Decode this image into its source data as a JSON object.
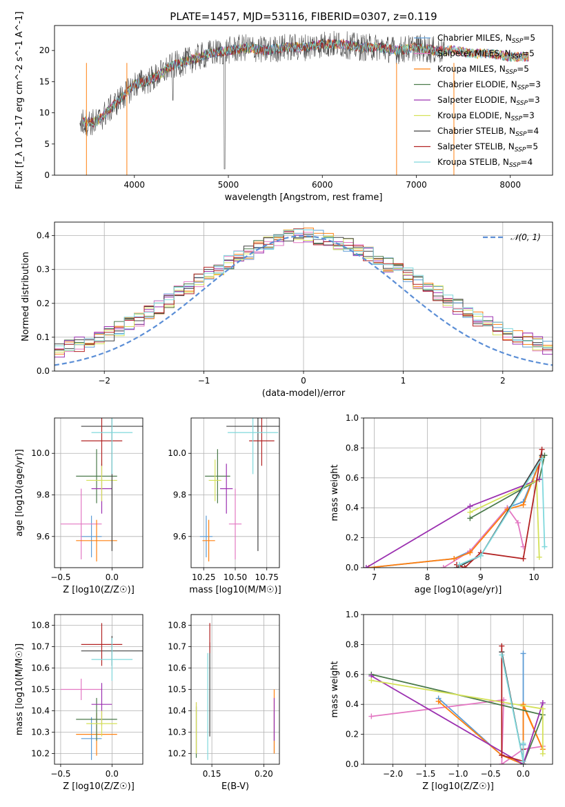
{
  "figure": {
    "title": "PLATE=1457, MJD=53116, FIBERID=0307, z=0.119"
  },
  "models": [
    {
      "name": "Chabrier MILES",
      "nssp": 5,
      "color": "#5b9bd5"
    },
    {
      "name": "Salpeter MILES",
      "nssp": 5,
      "color": "#e377c2"
    },
    {
      "name": "Kroupa MILES",
      "nssp": 5,
      "color": "#ff7f0e"
    },
    {
      "name": "Chabrier ELODIE",
      "nssp": 3,
      "color": "#4a7a4a"
    },
    {
      "name": "Salpeter ELODIE",
      "nssp": 3,
      "color": "#9b30b0"
    },
    {
      "name": "Kroupa ELODIE",
      "nssp": 3,
      "color": "#d4e157"
    },
    {
      "name": "Chabrier STELIB",
      "nssp": 4,
      "color": "#404040"
    },
    {
      "name": "Salpeter STELIB",
      "nssp": 5,
      "color": "#b22222"
    },
    {
      "name": "Kroupa STELIB",
      "nssp": 4,
      "color": "#7fd8dc"
    }
  ],
  "chart_data": [
    {
      "id": "spectrum",
      "type": "line",
      "xlabel": "wavelength [Angstrom, rest frame]",
      "ylabel": "Flux [f_λ 10^-17 erg cm^-2 s^-1 A^-1]",
      "xlim": [
        3150,
        8450
      ],
      "ylim": [
        0,
        24
      ],
      "xticks": [
        4000,
        5000,
        6000,
        7000,
        8000
      ],
      "yticks": [
        0,
        5,
        10,
        15,
        20
      ],
      "grid": false,
      "legend": "right",
      "data": {
        "x": [
          3450,
          3600,
          3800,
          4000,
          4200,
          4400,
          4600,
          4800,
          5000,
          5200,
          5400,
          5600,
          5800,
          6000,
          6200,
          6400,
          6600,
          6800,
          7000,
          7200,
          7400,
          7600,
          7800,
          8000,
          8200
        ],
        "y": [
          8.5,
          8.5,
          11.5,
          14.5,
          15.5,
          17.5,
          18.5,
          19.5,
          20,
          20.5,
          20,
          20.5,
          20.5,
          21,
          21,
          20.5,
          20.5,
          20,
          20.5,
          20,
          20,
          19.5,
          19.5,
          19,
          19
        ]
      }
    },
    {
      "id": "residuals",
      "type": "histogram",
      "xlabel": "(data-model)/error",
      "ylabel": "Normed distribution",
      "xlim": [
        -2.5,
        2.5
      ],
      "ylim": [
        0,
        0.44
      ],
      "xticks": [
        -2,
        -1,
        0,
        1,
        2
      ],
      "yticks": [
        0.0,
        0.1,
        0.2,
        0.3,
        0.4
      ],
      "grid": true,
      "legend": "top-right",
      "reference_label": "𝒩(0, 1)",
      "bin_width": 0.1,
      "mean_distribution": [
        0.035,
        0.04,
        0.045,
        0.05,
        0.055,
        0.06,
        0.07,
        0.08,
        0.09,
        0.1,
        0.11,
        0.125,
        0.14,
        0.155,
        0.17,
        0.19,
        0.21,
        0.23,
        0.25,
        0.27,
        0.29,
        0.305,
        0.32,
        0.335,
        0.35,
        0.365,
        0.375,
        0.385,
        0.395,
        0.4,
        0.4,
        0.395,
        0.39,
        0.38,
        0.37,
        0.36,
        0.345,
        0.33,
        0.315,
        0.3,
        0.285,
        0.265,
        0.25,
        0.23,
        0.21,
        0.19,
        0.17,
        0.155,
        0.14,
        0.125,
        0.11,
        0.1,
        0.09,
        0.08,
        0.07,
        0.06,
        0.055,
        0.05,
        0.045,
        0.04,
        0.035,
        0.035
      ]
    },
    {
      "id": "age_vs_Z",
      "type": "errorbar",
      "xlabel": "Z [log10(Z/Z☉)]",
      "ylabel": "age [log10(age/yr)]",
      "xlim": [
        -0.56,
        0.3
      ],
      "ylim": [
        9.45,
        10.17
      ],
      "xticks": [
        -0.5,
        0.0
      ],
      "yticks": [
        9.6,
        9.8,
        10.0
      ],
      "grid": true,
      "points": [
        {
          "x": -0.2,
          "xerr": 0.1,
          "y": 9.6,
          "yerr": 0.1
        },
        {
          "x": -0.3,
          "xerr": 0.2,
          "y": 9.66,
          "yerr": 0.17
        },
        {
          "x": -0.15,
          "xerr": 0.2,
          "y": 9.58,
          "yerr": 0.1
        },
        {
          "x": -0.15,
          "xerr": 0.2,
          "y": 9.89,
          "yerr": 0.13
        },
        {
          "x": -0.1,
          "xerr": 0.1,
          "y": 9.83,
          "yerr": 0.12
        },
        {
          "x": -0.1,
          "xerr": 0.15,
          "y": 9.87,
          "yerr": 0.1
        },
        {
          "x": 0.0,
          "xerr": 0.3,
          "y": 10.13,
          "yerr": 0.6
        },
        {
          "x": -0.1,
          "xerr": 0.2,
          "y": 10.06,
          "yerr": 0.12
        },
        {
          "x": 0.0,
          "xerr": 0.2,
          "y": 10.1,
          "yerr": 0.2
        }
      ]
    },
    {
      "id": "age_vs_mass",
      "type": "errorbar",
      "xlabel": "mass [log10(M/M☉)]",
      "ylabel": "",
      "xlim": [
        10.15,
        10.85
      ],
      "ylim": [
        9.45,
        10.17
      ],
      "xticks": [
        10.25,
        10.5,
        10.75
      ],
      "yticks": [
        9.6,
        9.8,
        10.0
      ],
      "grid": true,
      "points": [
        {
          "x": 10.27,
          "xerr": 0.05,
          "y": 9.6,
          "yerr": 0.1
        },
        {
          "x": 10.5,
          "xerr": 0.05,
          "y": 9.66,
          "yerr": 0.17
        },
        {
          "x": 10.29,
          "xerr": 0.05,
          "y": 9.58,
          "yerr": 0.1
        },
        {
          "x": 10.36,
          "xerr": 0.1,
          "y": 9.89,
          "yerr": 0.13
        },
        {
          "x": 10.43,
          "xerr": 0.05,
          "y": 9.83,
          "yerr": 0.12
        },
        {
          "x": 10.34,
          "xerr": 0.05,
          "y": 9.87,
          "yerr": 0.1
        },
        {
          "x": 10.68,
          "xerr": 0.25,
          "y": 10.13,
          "yerr": 0.6
        },
        {
          "x": 10.71,
          "xerr": 0.1,
          "y": 10.06,
          "yerr": 0.12
        },
        {
          "x": 10.64,
          "xerr": 0.2,
          "y": 10.1,
          "yerr": 0.2
        }
      ]
    },
    {
      "id": "mass_weight_vs_age",
      "type": "line",
      "xlabel": "age [log10(age/yr)]",
      "ylabel": "mass weight",
      "xlim": [
        6.8,
        10.35
      ],
      "ylim": [
        0,
        1
      ],
      "xticks": [
        7,
        8,
        9,
        10
      ],
      "yticks": [
        0.0,
        0.2,
        0.4,
        0.6,
        0.8,
        1.0
      ],
      "grid": true,
      "series": [
        {
          "x": [
            6.9,
            8.5,
            8.8,
            9.5,
            9.8,
            10.15
          ],
          "y": [
            0.0,
            0.06,
            0.11,
            0.4,
            0.44,
            0.74
          ]
        },
        {
          "x": [
            8.3,
            8.8,
            9.5,
            9.7,
            9.8
          ],
          "y": [
            0.0,
            0.11,
            0.4,
            0.3,
            0.14
          ]
        },
        {
          "x": [
            6.9,
            8.5,
            8.8,
            9.5,
            9.8,
            10.15
          ],
          "y": [
            0.0,
            0.06,
            0.1,
            0.39,
            0.42,
            0.74
          ]
        },
        {
          "x": [
            8.8,
            10.1,
            10.2
          ],
          "y": [
            0.33,
            0.59,
            0.75
          ]
        },
        {
          "x": [
            6.85,
            8.8,
            10.1
          ],
          "y": [
            0.0,
            0.41,
            0.59
          ]
        },
        {
          "x": [
            8.8,
            10.05,
            10.1
          ],
          "y": [
            0.37,
            0.58,
            0.07
          ]
        },
        {
          "x": [
            8.55,
            9.0,
            10.15
          ],
          "y": [
            0.0,
            0.08,
            0.75
          ]
        },
        {
          "x": [
            8.55,
            8.7,
            9.0,
            9.8,
            10.15
          ],
          "y": [
            0.02,
            0.0,
            0.1,
            0.06,
            0.79
          ]
        },
        {
          "x": [
            8.6,
            9.0,
            10.15,
            10.2
          ],
          "y": [
            0.02,
            0.08,
            0.73,
            0.14
          ]
        }
      ]
    },
    {
      "id": "mass_vs_Z",
      "type": "errorbar",
      "xlabel": "Z [log10(Z/Z☉)]",
      "ylabel": "mass [log10(M/M☉)]",
      "xlim": [
        -0.56,
        0.3
      ],
      "ylim": [
        10.15,
        10.85
      ],
      "xticks": [
        -0.5,
        0.0
      ],
      "yticks": [
        10.2,
        10.3,
        10.4,
        10.5,
        10.6,
        10.7,
        10.8
      ],
      "grid": true,
      "points": [
        {
          "x": -0.2,
          "xerr": 0.1,
          "y": 10.27,
          "yerr": 0.1
        },
        {
          "x": -0.3,
          "xerr": 0.2,
          "y": 10.5,
          "yerr": 0.05
        },
        {
          "x": -0.15,
          "xerr": 0.2,
          "y": 10.29,
          "yerr": 0.1
        },
        {
          "x": -0.15,
          "xerr": 0.2,
          "y": 10.36,
          "yerr": 0.1
        },
        {
          "x": -0.1,
          "xerr": 0.1,
          "y": 10.43,
          "yerr": 0.1
        },
        {
          "x": -0.1,
          "xerr": 0.15,
          "y": 10.34,
          "yerr": 0.06
        },
        {
          "x": 0.0,
          "xerr": 0.3,
          "y": 10.68,
          "yerr": 0.07
        },
        {
          "x": -0.1,
          "xerr": 0.2,
          "y": 10.71,
          "yerr": 0.1
        },
        {
          "x": 0.0,
          "xerr": 0.2,
          "y": 10.64,
          "yerr": 0.1
        }
      ]
    },
    {
      "id": "mass_vs_ebv",
      "type": "errorbar",
      "xlabel": "E(B-V)",
      "ylabel": "",
      "xlim": [
        0.13,
        0.215
      ],
      "ylim": [
        10.15,
        10.85
      ],
      "xticks": [
        0.15,
        0.2
      ],
      "yticks": [
        10.2,
        10.3,
        10.4,
        10.5,
        10.6,
        10.7,
        10.8
      ],
      "grid": true,
      "points": [
        {
          "x": 0.21,
          "xerr": 0,
          "y": 10.3,
          "yerr": 0.1
        },
        {
          "x": 0.135,
          "xerr": 0,
          "y": 10.32,
          "yerr": 0.12
        },
        {
          "x": 0.21,
          "xerr": 0,
          "y": 10.35,
          "yerr": 0.15
        },
        {
          "x": 0.135,
          "xerr": 0,
          "y": 10.3,
          "yerr": 0.12
        },
        {
          "x": 0.21,
          "xerr": 0,
          "y": 10.36,
          "yerr": 0.1
        },
        {
          "x": 0.135,
          "xerr": 0,
          "y": 10.32,
          "yerr": 0.12
        },
        {
          "x": 0.148,
          "xerr": 0,
          "y": 10.5,
          "yerr": 0.22
        },
        {
          "x": 0.148,
          "xerr": 0,
          "y": 10.74,
          "yerr": 0.07
        },
        {
          "x": 0.146,
          "xerr": 0,
          "y": 10.42,
          "yerr": 0.25
        }
      ]
    },
    {
      "id": "mass_weight_vs_Z",
      "type": "line",
      "xlabel": "Z [log10(Z/Z☉)]",
      "ylabel": "mass weight",
      "xlim": [
        -2.45,
        0.45
      ],
      "ylim": [
        0,
        1
      ],
      "xticks": [
        -2.0,
        -1.5,
        -1.0,
        -0.5,
        0.0
      ],
      "yticks": [
        0.0,
        0.2,
        0.4,
        0.6,
        0.8,
        1.0
      ],
      "grid": true,
      "series": [
        {
          "x": [
            -1.3,
            -0.33,
            0.0,
            0.0,
            0.0
          ],
          "y": [
            0.44,
            0.06,
            0.0,
            0.13,
            0.74
          ]
        },
        {
          "x": [
            -2.33,
            -0.3,
            -0.33,
            0.0,
            0.3
          ],
          "y": [
            0.32,
            0.43,
            0.0,
            0.1,
            0.12
          ]
        },
        {
          "x": [
            -1.3,
            -0.33,
            0.0,
            0.0,
            0.3,
            0.0
          ],
          "y": [
            0.42,
            0.06,
            0.0,
            0.39,
            0.1,
            0.4
          ]
        },
        {
          "x": [
            -2.33,
            0.3,
            0.0
          ],
          "y": [
            0.6,
            0.33,
            0.0
          ]
        },
        {
          "x": [
            -2.33,
            0.0,
            0.3
          ],
          "y": [
            0.59,
            0.0,
            0.41
          ]
        },
        {
          "x": [
            -2.33,
            0.3,
            0.3
          ],
          "y": [
            0.56,
            0.37,
            0.07
          ]
        },
        {
          "x": [
            -0.33,
            0.0,
            0.0
          ],
          "y": [
            0.75,
            0.02,
            0.0
          ]
        },
        {
          "x": [
            -0.33,
            -0.33,
            0.0,
            0.0
          ],
          "y": [
            0.79,
            0.06,
            0.02,
            0.1
          ]
        },
        {
          "x": [
            -0.33,
            0.0,
            0.0
          ],
          "y": [
            0.73,
            0.02,
            0.14
          ]
        }
      ]
    }
  ]
}
